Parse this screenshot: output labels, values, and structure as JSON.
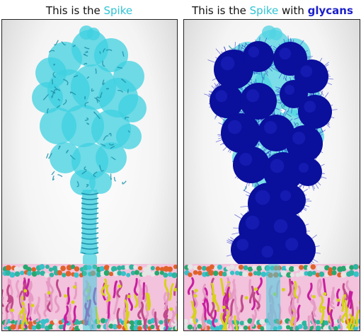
{
  "panels": {
    "left": {
      "title_prefix": "This is the ",
      "title_accent": "Spike",
      "subject": "spike-protein"
    },
    "right": {
      "title_prefix": "This is the ",
      "title_accent": "Spike",
      "title_middle": " with ",
      "title_glycans": "glycans",
      "subject": "glycosylated-spike-protein"
    }
  },
  "colors": {
    "protein": "#3fd0e0",
    "protein_dark": "#1a8fa8",
    "glycan": "#0a0f9c",
    "glycan_light": "#1a22c8",
    "membrane_pink": "#e59ac4",
    "membrane_magenta": "#c81ea0",
    "membrane_teal": "#2fb5a0",
    "membrane_yellow": "#d6d21a",
    "membrane_orange": "#e0622a"
  }
}
